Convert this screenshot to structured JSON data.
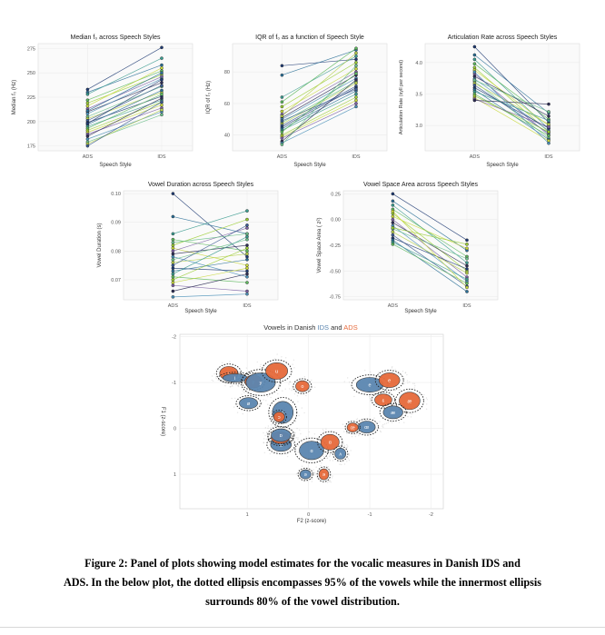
{
  "palette": {
    "lines": [
      "#1f3b73",
      "#2a6f97",
      "#3a9b8f",
      "#5cb85c",
      "#9acd32",
      "#c8d93b",
      "#7a5fa3",
      "#2c2c54",
      "#4a90b8",
      "#6bbf8a",
      "#b5cf49",
      "#3b5b92"
    ],
    "ids": "#5b86b0",
    "ads": "#e66a3b",
    "grid": "#ececec",
    "axis_text": "#555555"
  },
  "chart_data": [
    {
      "id": "p1",
      "type": "line",
      "title": "Median f₀  across Speech Styles",
      "xlabel": "Speech Style",
      "ylabel": "Median f₀ (Hz)",
      "categories": [
        "ADS",
        "IDS"
      ],
      "yticks": [
        "175",
        "200",
        "225",
        "250",
        "275"
      ],
      "ytick_values": [
        175,
        200,
        225,
        250,
        275
      ],
      "ylim": [
        170,
        280
      ],
      "pairs": [
        [
          233,
          276
        ],
        [
          230,
          258
        ],
        [
          228,
          265
        ],
        [
          222,
          252
        ],
        [
          219,
          248
        ],
        [
          216,
          255
        ],
        [
          213,
          246
        ],
        [
          210,
          240
        ],
        [
          208,
          244
        ],
        [
          205,
          236
        ],
        [
          203,
          230
        ],
        [
          201,
          237
        ],
        [
          199,
          226
        ],
        [
          197,
          232
        ],
        [
          195,
          222
        ],
        [
          193,
          228
        ],
        [
          191,
          220
        ],
        [
          189,
          217
        ],
        [
          187,
          214
        ],
        [
          185,
          224
        ],
        [
          182,
          210
        ],
        [
          179,
          207
        ],
        [
          177,
          212
        ],
        [
          175,
          220
        ],
        [
          198,
          243
        ],
        [
          211,
          250
        ]
      ]
    },
    {
      "id": "p2",
      "type": "line",
      "title": "IQR of f₀ as a function of Speech Style",
      "xlabel": "Speech Style",
      "ylabel": "IQR of f₀ (Hz)",
      "categories": [
        "ADS",
        "IDS"
      ],
      "yticks": [
        "40",
        "60",
        "80"
      ],
      "ytick_values": [
        40,
        60,
        80
      ],
      "ylim": [
        30,
        98
      ],
      "pairs": [
        [
          84,
          88
        ],
        [
          78,
          94
        ],
        [
          64,
          90
        ],
        [
          61,
          95
        ],
        [
          58,
          86
        ],
        [
          55,
          82
        ],
        [
          53,
          80
        ],
        [
          51,
          78
        ],
        [
          50,
          76
        ],
        [
          48,
          74
        ],
        [
          47,
          73
        ],
        [
          46,
          71
        ],
        [
          45,
          70
        ],
        [
          44,
          68
        ],
        [
          43,
          66
        ],
        [
          42,
          79
        ],
        [
          40,
          64
        ],
        [
          39,
          62
        ],
        [
          38,
          60
        ],
        [
          36,
          75
        ],
        [
          35,
          58
        ],
        [
          34,
          84
        ],
        [
          52,
          92
        ],
        [
          49,
          69
        ]
      ]
    },
    {
      "id": "p3",
      "type": "line",
      "title": "Articulation Rate across Speech Styles",
      "xlabel": "Speech Style",
      "ylabel": "Articulation Rate (syll per second)",
      "categories": [
        "ADS",
        "IDS"
      ],
      "yticks": [
        "3.0",
        "3.5",
        "4.0"
      ],
      "ytick_values": [
        3.0,
        3.5,
        4.0
      ],
      "ylim": [
        2.6,
        4.3
      ],
      "pairs": [
        [
          4.25,
          3.05
        ],
        [
          4.12,
          3.2
        ],
        [
          4.05,
          2.95
        ],
        [
          3.98,
          3.1
        ],
        [
          3.92,
          2.9
        ],
        [
          3.88,
          3.0
        ],
        [
          3.82,
          2.85
        ],
        [
          3.78,
          3.15
        ],
        [
          3.74,
          2.92
        ],
        [
          3.7,
          2.8
        ],
        [
          3.67,
          3.02
        ],
        [
          3.64,
          2.88
        ],
        [
          3.6,
          2.96
        ],
        [
          3.57,
          2.78
        ],
        [
          3.54,
          3.08
        ],
        [
          3.5,
          2.84
        ],
        [
          3.47,
          2.9
        ],
        [
          3.44,
          2.76
        ],
        [
          3.42,
          2.98
        ],
        [
          3.4,
          3.34
        ],
        [
          3.85,
          2.72
        ],
        [
          3.72,
          3.22
        ]
      ]
    },
    {
      "id": "p4",
      "type": "line",
      "title": "Vowel Duration across Speech Styles",
      "xlabel": "Speech Style",
      "ylabel": "Vowel Duration (s)",
      "categories": [
        "ADS",
        "IDS"
      ],
      "yticks": [
        "0.07",
        "0.08",
        "0.09",
        "0.10"
      ],
      "ytick_values": [
        0.07,
        0.08,
        0.09,
        0.1
      ],
      "ylim": [
        0.063,
        0.101
      ],
      "pairs": [
        [
          0.1,
          0.078
        ],
        [
          0.092,
          0.086
        ],
        [
          0.086,
          0.094
        ],
        [
          0.084,
          0.08
        ],
        [
          0.082,
          0.091
        ],
        [
          0.081,
          0.075
        ],
        [
          0.08,
          0.088
        ],
        [
          0.079,
          0.082
        ],
        [
          0.078,
          0.071
        ],
        [
          0.077,
          0.084
        ],
        [
          0.076,
          0.079
        ],
        [
          0.075,
          0.089
        ],
        [
          0.074,
          0.073
        ],
        [
          0.073,
          0.077
        ],
        [
          0.072,
          0.085
        ],
        [
          0.071,
          0.069
        ],
        [
          0.07,
          0.081
        ],
        [
          0.069,
          0.074
        ],
        [
          0.068,
          0.066
        ],
        [
          0.066,
          0.072
        ],
        [
          0.064,
          0.065
        ],
        [
          0.083,
          0.086
        ]
      ]
    },
    {
      "id": "p5",
      "type": "line",
      "title": "Vowel Space Area across Speech Styles",
      "xlabel": "Speech Style",
      "ylabel": "Vowel Space Area (   z²)",
      "categories": [
        "ADS",
        "IDS"
      ],
      "yticks": [
        "-0.75",
        "-0.50",
        "-0.25",
        "0.00",
        "0.25"
      ],
      "ytick_values": [
        -0.75,
        -0.5,
        -0.25,
        0,
        0.25
      ],
      "ylim": [
        -0.78,
        0.28
      ],
      "pairs": [
        [
          0.25,
          -0.2
        ],
        [
          0.18,
          -0.3
        ],
        [
          0.14,
          -0.42
        ],
        [
          0.1,
          -0.36
        ],
        [
          0.06,
          -0.5
        ],
        [
          0.03,
          -0.28
        ],
        [
          0.0,
          -0.56
        ],
        [
          -0.03,
          -0.45
        ],
        [
          -0.06,
          -0.6
        ],
        [
          -0.09,
          -0.38
        ],
        [
          -0.12,
          -0.52
        ],
        [
          -0.15,
          -0.65
        ],
        [
          -0.18,
          -0.48
        ],
        [
          -0.2,
          -0.7
        ],
        [
          -0.22,
          -0.58
        ],
        [
          -0.24,
          -0.62
        ],
        [
          -0.08,
          -0.24
        ],
        [
          0.08,
          -0.66
        ]
      ]
    },
    {
      "id": "p6",
      "type": "scatter",
      "title_parts": [
        "Vowels in Danish ",
        "IDS",
        " and ",
        "ADS"
      ],
      "xlabel": "F2 (z-score)",
      "ylabel": "F1 (z-score)",
      "xticks": [
        "1",
        "0",
        "-1",
        "-2"
      ],
      "xtick_values": [
        1,
        0,
        -1,
        -2
      ],
      "yticks": [
        "-2",
        "-1",
        "0",
        "1"
      ],
      "ytick_values": [
        -2,
        -1,
        0,
        1
      ],
      "xlim": [
        2.1,
        -2.2
      ],
      "ylim": [
        -2.05,
        1.75
      ],
      "vowels": [
        {
          "style": "ADS",
          "label": "i",
          "x": 1.3,
          "y": -1.2,
          "rx": 0.15,
          "ry": 0.15
        },
        {
          "style": "IDS",
          "label": "i",
          "x": 1.2,
          "y": -1.1,
          "rx": 0.2,
          "ry": 0.09
        },
        {
          "style": "ADS",
          "label": "y",
          "x": 0.9,
          "y": -1.02,
          "rx": 0.14,
          "ry": 0.14
        },
        {
          "style": "IDS",
          "label": "y",
          "x": 0.78,
          "y": -1.0,
          "rx": 0.24,
          "ry": 0.21
        },
        {
          "style": "ADS",
          "label": "u",
          "x": 0.52,
          "y": -1.25,
          "rx": 0.18,
          "ry": 0.18
        },
        {
          "style": "IDS",
          "label": "ø",
          "x": 0.98,
          "y": -0.55,
          "rx": 0.15,
          "ry": 0.12
        },
        {
          "style": "ADS",
          "label": "o",
          "x": 0.1,
          "y": -0.92,
          "rx": 0.11,
          "ry": 0.12
        },
        {
          "style": "IDS",
          "label": "ɔ",
          "x": 0.42,
          "y": -0.35,
          "rx": 0.17,
          "ry": 0.24
        },
        {
          "style": "ADS",
          "label": "ɔ",
          "x": 0.48,
          "y": -0.25,
          "rx": 0.09,
          "ry": 0.11
        },
        {
          "style": "IDS",
          "label": "a",
          "x": 0.45,
          "y": 0.35,
          "rx": 0.17,
          "ry": 0.15
        },
        {
          "style": "ADS",
          "label": "a",
          "x": 0.46,
          "y": 0.2,
          "rx": 0.15,
          "ry": 0.13
        },
        {
          "style": "IDS",
          "label": "ɑ",
          "x": -0.05,
          "y": 0.48,
          "rx": 0.2,
          "ry": 0.2
        },
        {
          "style": "ADS",
          "label": "ɑ",
          "x": -0.35,
          "y": 0.3,
          "rx": 0.15,
          "ry": 0.17
        },
        {
          "style": "IDS",
          "label": "ʌ",
          "x": -0.52,
          "y": 0.55,
          "rx": 0.09,
          "ry": 0.12
        },
        {
          "style": "IDS",
          "label": "e",
          "x": -1.0,
          "y": -0.95,
          "rx": 0.22,
          "ry": 0.16
        },
        {
          "style": "ADS",
          "label": "e",
          "x": -1.32,
          "y": -1.05,
          "rx": 0.17,
          "ry": 0.16
        },
        {
          "style": "ADS",
          "label": "ɛ",
          "x": -1.22,
          "y": -0.62,
          "rx": 0.14,
          "ry": 0.13
        },
        {
          "style": "ADS",
          "label": "æ",
          "x": -1.65,
          "y": -0.6,
          "rx": 0.17,
          "ry": 0.19
        },
        {
          "style": "IDS",
          "label": "æ",
          "x": -1.38,
          "y": -0.35,
          "rx": 0.16,
          "ry": 0.14
        },
        {
          "style": "IDS",
          "label": "œ",
          "x": -0.95,
          "y": -0.03,
          "rx": 0.14,
          "ry": 0.13
        },
        {
          "style": "ADS",
          "label": "œ",
          "x": -0.72,
          "y": -0.02,
          "rx": 0.09,
          "ry": 0.1
        },
        {
          "style": "IDS",
          "label": "ə",
          "x": 0.05,
          "y": 1.0,
          "rx": 0.09,
          "ry": 0.1
        },
        {
          "style": "ADS",
          "label": "ə",
          "x": -0.25,
          "y": 1.0,
          "rx": 0.08,
          "ry": 0.12
        },
        {
          "style": "IDS",
          "label": "ɒ",
          "x": 0.45,
          "y": 0.15,
          "rx": 0.16,
          "ry": 0.14
        }
      ]
    }
  ],
  "caption": {
    "line1": "Figure 2: Panel of plots showing model estimates for the vocalic measures in Danish IDS and",
    "line2": "ADS. In the below plot, the dotted ellipsis encompasses 95% of the vowels while the innermost ellipsis",
    "line3": "surrounds 80% of the vowel distribution."
  }
}
